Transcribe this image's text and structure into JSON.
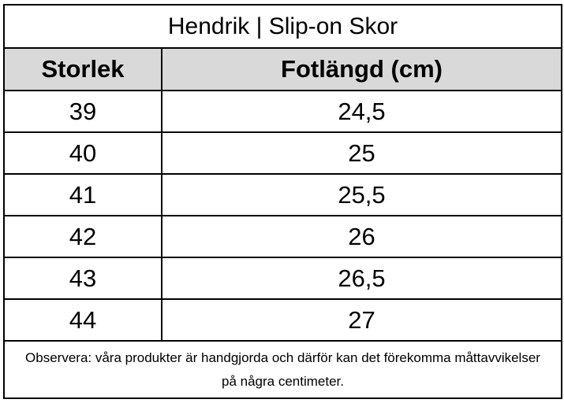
{
  "table": {
    "title": "Hendrik | Slip-on Skor",
    "header": [
      "Storlek",
      "Fotlängd (cm)"
    ],
    "rows": [
      [
        "39",
        "24,5"
      ],
      [
        "40",
        "25"
      ],
      [
        "41",
        "25,5"
      ],
      [
        "42",
        "26"
      ],
      [
        "43",
        "26,5"
      ],
      [
        "44",
        "27"
      ]
    ],
    "note": "Observera: våra produkter är handgjorda och därför kan det förekomma måttavvikelser på några centimeter."
  }
}
